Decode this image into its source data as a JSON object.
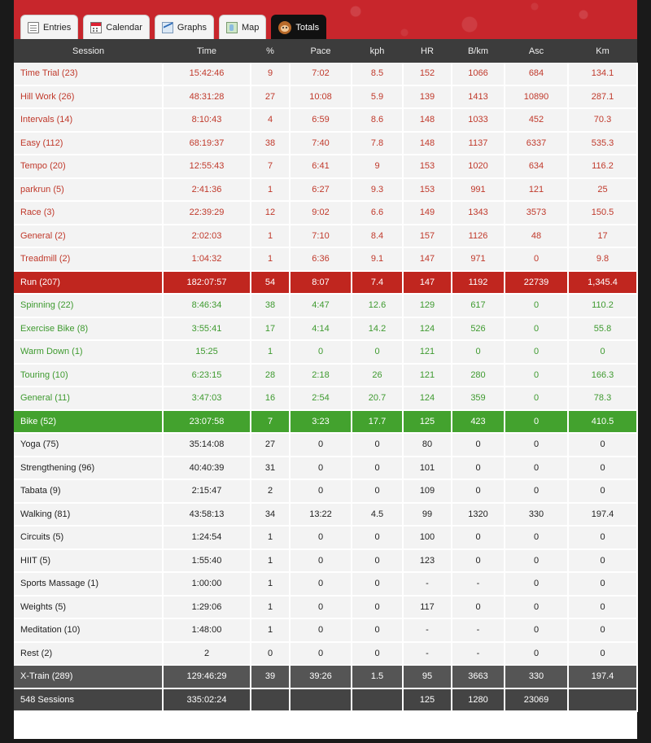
{
  "tabs": [
    {
      "label": "Entries",
      "icon": "entries-icon"
    },
    {
      "label": "Calendar",
      "icon": "calendar-icon"
    },
    {
      "label": "Graphs",
      "icon": "graphs-icon"
    },
    {
      "label": "Map",
      "icon": "map-icon"
    },
    {
      "label": "Totals",
      "icon": "monkey-icon",
      "active": true
    }
  ],
  "columns": [
    "Session",
    "Time",
    "%",
    "Pace",
    "kph",
    "HR",
    "B/km",
    "Asc",
    "Km"
  ],
  "run_rows": [
    [
      "Time Trial (23)",
      "15:42:46",
      "9",
      "7:02",
      "8.5",
      "152",
      "1066",
      "684",
      "134.1"
    ],
    [
      "Hill Work (26)",
      "48:31:28",
      "27",
      "10:08",
      "5.9",
      "139",
      "1413",
      "10890",
      "287.1"
    ],
    [
      "Intervals (14)",
      "8:10:43",
      "4",
      "6:59",
      "8.6",
      "148",
      "1033",
      "452",
      "70.3"
    ],
    [
      "Easy (112)",
      "68:19:37",
      "38",
      "7:40",
      "7.8",
      "148",
      "1137",
      "6337",
      "535.3"
    ],
    [
      "Tempo (20)",
      "12:55:43",
      "7",
      "6:41",
      "9",
      "153",
      "1020",
      "634",
      "116.2"
    ],
    [
      "parkrun (5)",
      "2:41:36",
      "1",
      "6:27",
      "9.3",
      "153",
      "991",
      "121",
      "25"
    ],
    [
      "Race (3)",
      "22:39:29",
      "12",
      "9:02",
      "6.6",
      "149",
      "1343",
      "3573",
      "150.5"
    ],
    [
      "General (2)",
      "2:02:03",
      "1",
      "7:10",
      "8.4",
      "157",
      "1126",
      "48",
      "17"
    ],
    [
      "Treadmill (2)",
      "1:04:32",
      "1",
      "6:36",
      "9.1",
      "147",
      "971",
      "0",
      "9.8"
    ]
  ],
  "run_total": [
    "Run (207)",
    "182:07:57",
    "54",
    "8:07",
    "7.4",
    "147",
    "1192",
    "22739",
    "1,345.4"
  ],
  "bike_rows": [
    [
      "Spinning (22)",
      "8:46:34",
      "38",
      "4:47",
      "12.6",
      "129",
      "617",
      "0",
      "110.2"
    ],
    [
      "Exercise Bike (8)",
      "3:55:41",
      "17",
      "4:14",
      "14.2",
      "124",
      "526",
      "0",
      "55.8"
    ],
    [
      "Warm Down (1)",
      "15:25",
      "1",
      "0",
      "0",
      "121",
      "0",
      "0",
      "0"
    ],
    [
      "Touring (10)",
      "6:23:15",
      "28",
      "2:18",
      "26",
      "121",
      "280",
      "0",
      "166.3"
    ],
    [
      "General (11)",
      "3:47:03",
      "16",
      "2:54",
      "20.7",
      "124",
      "359",
      "0",
      "78.3"
    ]
  ],
  "bike_total": [
    "Bike (52)",
    "23:07:58",
    "7",
    "3:23",
    "17.7",
    "125",
    "423",
    "0",
    "410.5"
  ],
  "xtrain_rows": [
    [
      "Yoga (75)",
      "35:14:08",
      "27",
      "0",
      "0",
      "80",
      "0",
      "0",
      "0"
    ],
    [
      "Strengthening (96)",
      "40:40:39",
      "31",
      "0",
      "0",
      "101",
      "0",
      "0",
      "0"
    ],
    [
      "Tabata (9)",
      "2:15:47",
      "2",
      "0",
      "0",
      "109",
      "0",
      "0",
      "0"
    ],
    [
      "Walking (81)",
      "43:58:13",
      "34",
      "13:22",
      "4.5",
      "99",
      "1320",
      "330",
      "197.4"
    ],
    [
      "Circuits (5)",
      "1:24:54",
      "1",
      "0",
      "0",
      "100",
      "0",
      "0",
      "0"
    ],
    [
      "HIIT (5)",
      "1:55:40",
      "1",
      "0",
      "0",
      "123",
      "0",
      "0",
      "0"
    ],
    [
      "Sports Massage (1)",
      "1:00:00",
      "1",
      "0",
      "0",
      "-",
      "-",
      "0",
      "0"
    ],
    [
      "Weights (5)",
      "1:29:06",
      "1",
      "0",
      "0",
      "117",
      "0",
      "0",
      "0"
    ],
    [
      "Meditation (10)",
      "1:48:00",
      "1",
      "0",
      "0",
      "-",
      "-",
      "0",
      "0"
    ],
    [
      "Rest (2)",
      "2",
      "0",
      "0",
      "0",
      "-",
      "-",
      "0",
      "0"
    ]
  ],
  "xtrain_total": [
    "X-Train (289)",
    "129:46:29",
    "39",
    "39:26",
    "1.5",
    "95",
    "3663",
    "330",
    "197.4"
  ],
  "grand_total": [
    "548 Sessions",
    "335:02:24",
    "",
    "",
    "",
    "125",
    "1280",
    "23069",
    ""
  ],
  "colors": {
    "banner": "#c8262c",
    "run_text": "#c0392b",
    "bike_text": "#3e9a2f",
    "run_total_bg": "#c0261f",
    "bike_total_bg": "#43a22e",
    "header_bg": "#3c3c3c"
  }
}
